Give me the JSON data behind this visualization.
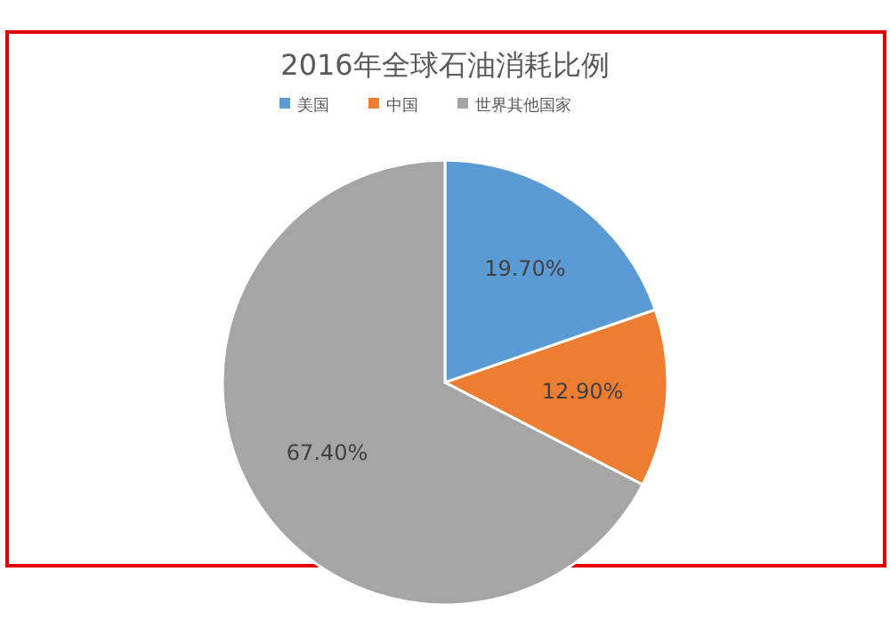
{
  "chart_data": {
    "type": "pie",
    "title": "2016年全球石油消耗比例",
    "categories": [
      "美国",
      "中国",
      "世界其他国家"
    ],
    "values": [
      19.7,
      12.9,
      67.4
    ],
    "colors": [
      "#5b9bd5",
      "#ed7d31",
      "#a5a5a5"
    ],
    "value_labels": [
      "19.70%",
      "12.90%",
      "67.40%"
    ],
    "legend": "top"
  }
}
